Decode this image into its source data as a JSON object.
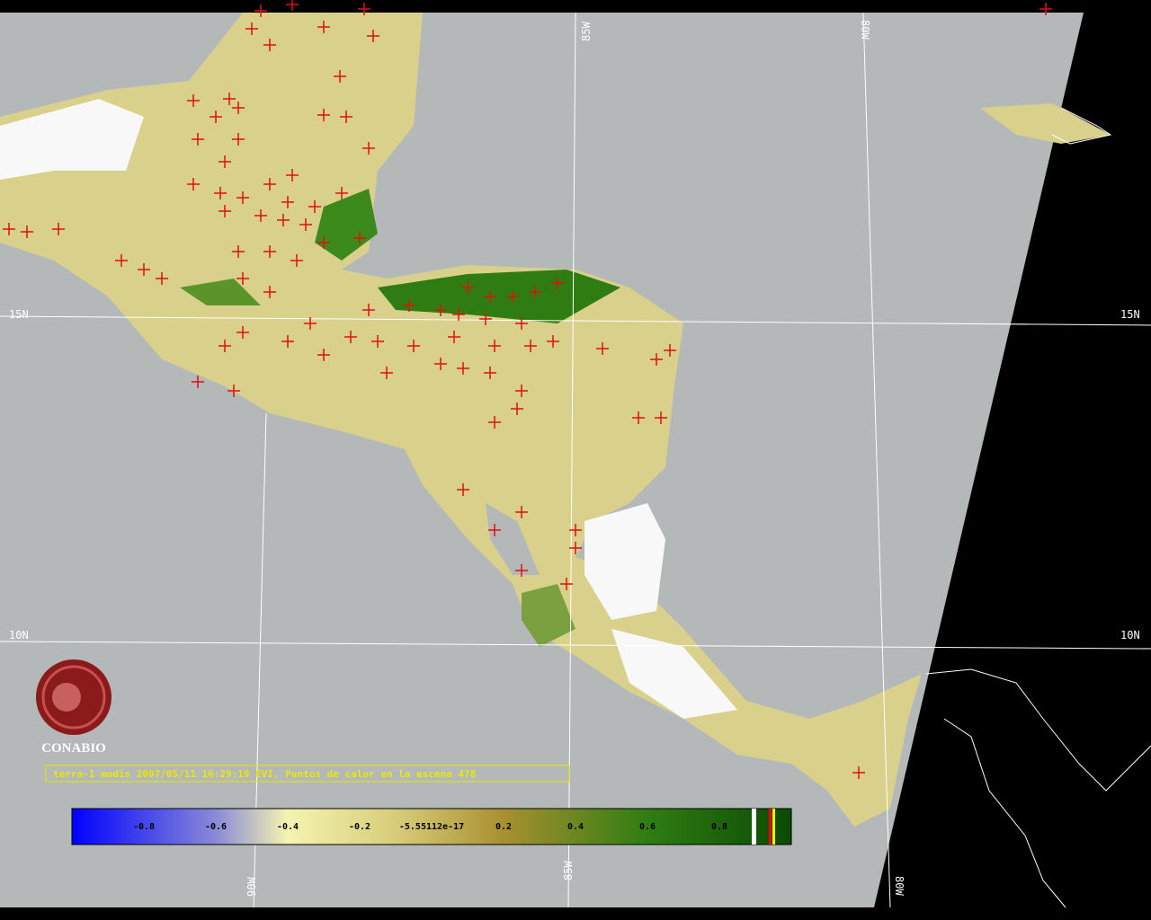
{
  "map": {
    "grid_labels": {
      "lat_15": "15N",
      "lat_15_right": "15N",
      "lat_10": "10N",
      "lat_10_right": "10N",
      "lon_85_top": "85W",
      "lon_80_top": "80W",
      "lon_90_bottom": "90W",
      "lon_85_bottom": "85W",
      "lon_80_bottom": "80W"
    },
    "logo_text": "CONABIO",
    "caption": "terra-1 modis 2007/05/11 16:29:19 EVI, Puntos de calor en la escena 478",
    "colorbar_labels": [
      "-0.8",
      "-0.6",
      "-0.4",
      "-0.2",
      "-5.55112e-17",
      "0.2",
      "0.4",
      "0.6",
      "0.8"
    ]
  }
}
